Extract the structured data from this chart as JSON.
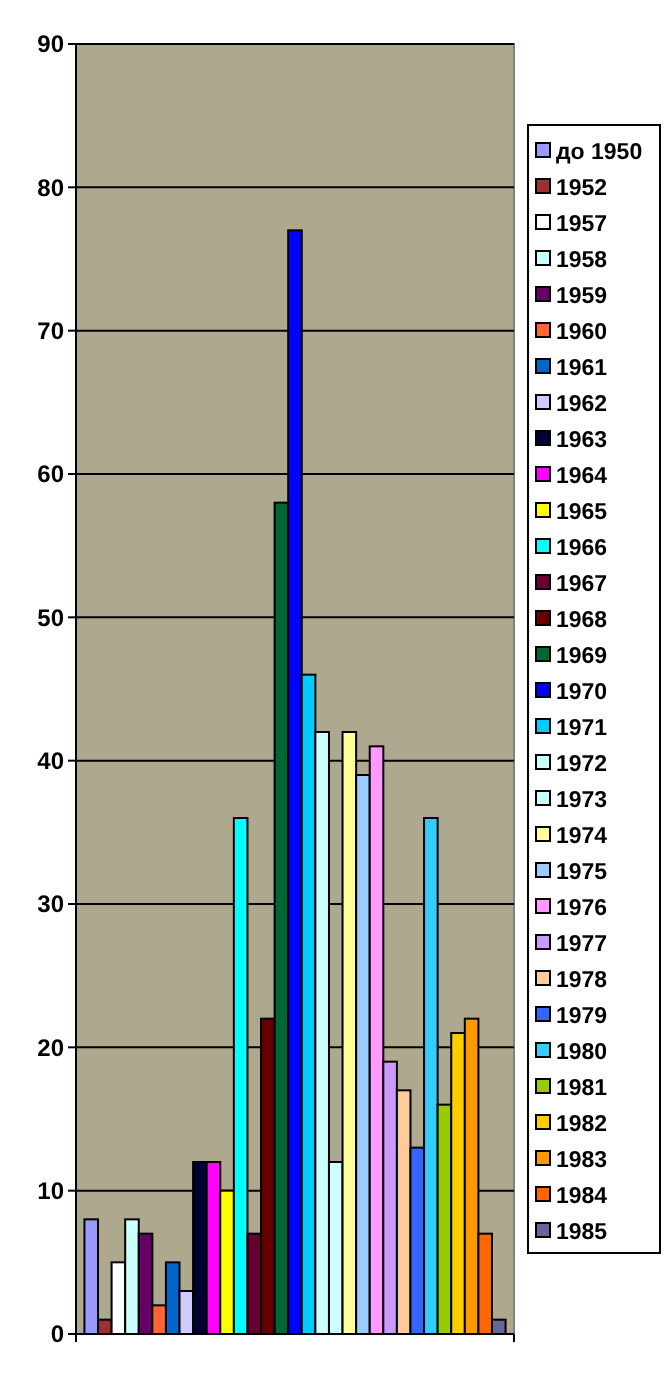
{
  "chart_data": {
    "type": "bar",
    "categories": [
      null
    ],
    "ylim": [
      0,
      90
    ],
    "yticks": [
      0,
      10,
      20,
      30,
      40,
      50,
      60,
      70,
      80,
      90
    ],
    "grid": "y",
    "legend": "right",
    "series": [
      {
        "name": "до 1950",
        "color": "#9999ff",
        "values": [
          8
        ]
      },
      {
        "name": "1952",
        "color": "#993333",
        "values": [
          1
        ]
      },
      {
        "name": "1957",
        "color": "#ffffff",
        "values": [
          5
        ]
      },
      {
        "name": "1958",
        "color": "#ccffff",
        "values": [
          8
        ]
      },
      {
        "name": "1959",
        "color": "#660066",
        "values": [
          7
        ]
      },
      {
        "name": "1960",
        "color": "#ff6633",
        "values": [
          2
        ]
      },
      {
        "name": "1961",
        "color": "#0066cc",
        "values": [
          5
        ]
      },
      {
        "name": "1962",
        "color": "#ccccff",
        "values": [
          3
        ]
      },
      {
        "name": "1963",
        "color": "#000033",
        "values": [
          12
        ]
      },
      {
        "name": "1964",
        "color": "#ff00ff",
        "values": [
          12
        ]
      },
      {
        "name": "1965",
        "color": "#ffff00",
        "values": [
          10
        ]
      },
      {
        "name": "1966",
        "color": "#00ffff",
        "values": [
          36
        ]
      },
      {
        "name": "1967",
        "color": "#660033",
        "values": [
          7
        ]
      },
      {
        "name": "1968",
        "color": "#660000",
        "values": [
          22
        ]
      },
      {
        "name": "1969",
        "color": "#006633",
        "values": [
          58
        ]
      },
      {
        "name": "1970",
        "color": "#0000ff",
        "values": [
          77
        ]
      },
      {
        "name": "1971",
        "color": "#00ccff",
        "values": [
          46
        ]
      },
      {
        "name": "1972",
        "color": "#ccffff",
        "values": [
          42
        ]
      },
      {
        "name": "1973",
        "color": "#ccffff",
        "values": [
          12
        ]
      },
      {
        "name": "1974",
        "color": "#ffff99",
        "values": [
          42
        ]
      },
      {
        "name": "1975",
        "color": "#99ccff",
        "values": [
          39
        ]
      },
      {
        "name": "1976",
        "color": "#ff99ff",
        "values": [
          41
        ]
      },
      {
        "name": "1977",
        "color": "#cc99ff",
        "values": [
          19
        ]
      },
      {
        "name": "1978",
        "color": "#ffcc99",
        "values": [
          17
        ]
      },
      {
        "name": "1979",
        "color": "#3366ff",
        "values": [
          13
        ]
      },
      {
        "name": "1980",
        "color": "#33ccff",
        "values": [
          36
        ]
      },
      {
        "name": "1981",
        "color": "#99cc00",
        "values": [
          16
        ]
      },
      {
        "name": "1982",
        "color": "#ffcc00",
        "values": [
          21
        ]
      },
      {
        "name": "1983",
        "color": "#ff9900",
        "values": [
          22
        ]
      },
      {
        "name": "1984",
        "color": "#ff6600",
        "values": [
          7
        ]
      },
      {
        "name": "1985",
        "color": "#666699",
        "values": [
          1
        ]
      }
    ]
  }
}
